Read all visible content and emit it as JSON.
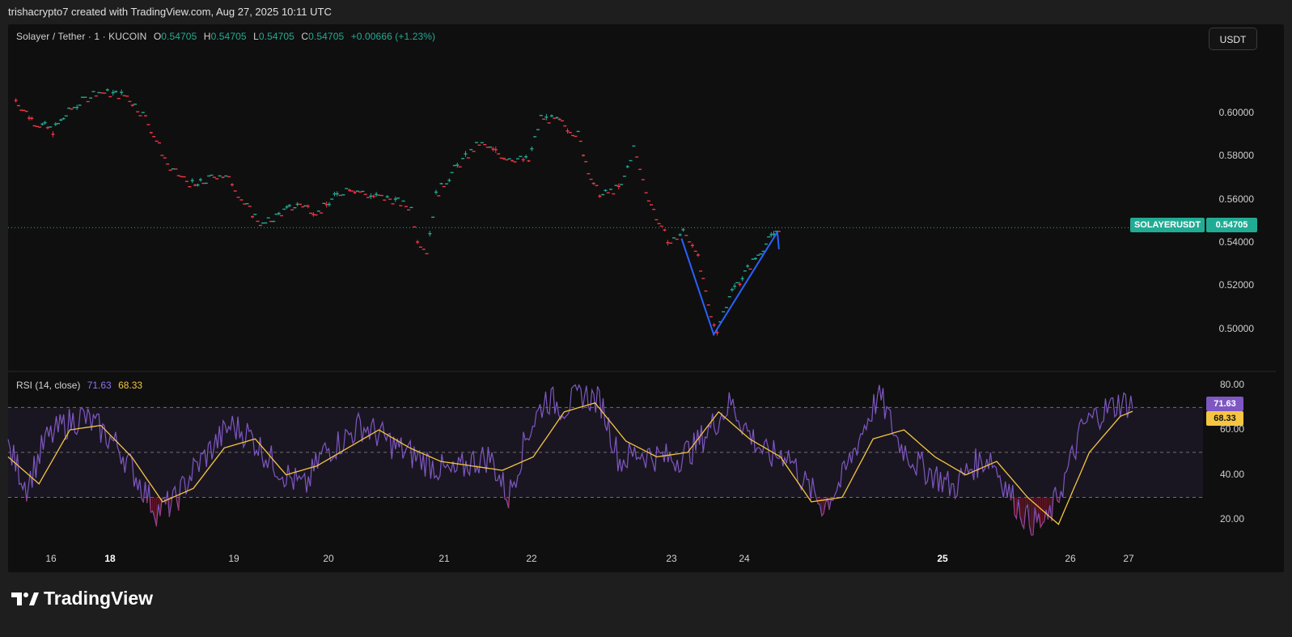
{
  "header": {
    "text": "trishacrypto7 created with TradingView.com, Aug 27, 2025 10:11 UTC"
  },
  "symbol": {
    "name": "Solayer / Tether · 1 · KUCOIN",
    "open_label": "O",
    "open": "0.54705",
    "high_label": "H",
    "high": "0.54705",
    "low_label": "L",
    "low": "0.54705",
    "close_label": "C",
    "close": "0.54705",
    "change": "+0.00666 (+1.23%)"
  },
  "currency_button": "USDT",
  "price_tag": {
    "symbol": "SOLAYERUSDT",
    "value": "0.54705"
  },
  "rsi": {
    "title": "RSI (14, close)",
    "value": "71.63",
    "ma_value": "68.33"
  },
  "branding": {
    "name": "TradingView"
  },
  "colors": {
    "up": "#22ab94",
    "down": "#f23645",
    "rsi": "#7e57c2",
    "rsi_ma": "#f5c542",
    "annotation": "#2962ff",
    "price_line": "#22ab94"
  },
  "chart_data": [
    {
      "type": "candlestick",
      "title": "Solayer / Tether · 1 · KUCOIN",
      "ylim": [
        0.4875,
        0.6225
      ],
      "y_ticks": [
        "0.60000",
        "0.58000",
        "0.56000",
        "0.54000",
        "0.52000",
        "0.50000"
      ],
      "x_ticks": [
        "16",
        "18",
        "19",
        "20",
        "21",
        "22",
        "23",
        "24",
        "25",
        "26",
        "27"
      ],
      "bold_x_ticks": [
        "18",
        "25"
      ],
      "last_price": 0.54705,
      "price_path": [
        [
          15.5,
          0.606
        ],
        [
          15.8,
          0.596
        ],
        [
          16.1,
          0.592
        ],
        [
          16.4,
          0.602
        ],
        [
          16.8,
          0.61
        ],
        [
          17.3,
          0.608
        ],
        [
          17.6,
          0.598
        ],
        [
          18.0,
          0.574
        ],
        [
          18.4,
          0.566
        ],
        [
          18.8,
          0.572
        ],
        [
          19.0,
          0.568
        ],
        [
          19.2,
          0.558
        ],
        [
          19.5,
          0.548
        ],
        [
          19.8,
          0.554
        ],
        [
          20.1,
          0.558
        ],
        [
          20.4,
          0.554
        ],
        [
          20.7,
          0.562
        ],
        [
          20.9,
          0.566
        ],
        [
          21.2,
          0.562
        ],
        [
          21.6,
          0.56
        ],
        [
          21.9,
          0.556
        ],
        [
          22.0,
          0.542
        ],
        [
          22.15,
          0.536
        ],
        [
          22.3,
          0.562
        ],
        [
          22.6,
          0.574
        ],
        [
          23.0,
          0.586
        ],
        [
          23.4,
          0.58
        ],
        [
          23.8,
          0.578
        ],
        [
          24.0,
          0.598
        ],
        [
          24.3,
          0.596
        ],
        [
          24.6,
          0.59
        ],
        [
          24.85,
          0.566
        ],
        [
          25.0,
          0.562
        ],
        [
          25.3,
          0.566
        ],
        [
          25.5,
          0.584
        ],
        [
          25.7,
          0.564
        ],
        [
          25.95,
          0.546
        ],
        [
          26.1,
          0.54
        ],
        [
          26.3,
          0.545
        ],
        [
          26.5,
          0.538
        ],
        [
          26.75,
          0.505
        ],
        [
          26.85,
          0.5
        ],
        [
          27.05,
          0.516
        ],
        [
          27.3,
          0.526
        ],
        [
          27.6,
          0.538
        ],
        [
          27.85,
          0.547
        ]
      ],
      "annotation_v": [
        [
          26.3,
          0.542
        ],
        [
          26.82,
          0.4975
        ],
        [
          27.85,
          0.545
        ],
        [
          27.85,
          0.54
        ]
      ]
    },
    {
      "type": "line",
      "title": "RSI (14, close)",
      "ylim": [
        10,
        82
      ],
      "y_ticks": [
        "80.00",
        "60.00",
        "40.00",
        "20.00"
      ],
      "bands": [
        70,
        50,
        30
      ],
      "series": [
        {
          "name": "RSI",
          "last": 71.63
        },
        {
          "name": "RSI MA",
          "last": 68.33
        }
      ],
      "rsi_path": [
        [
          15.4,
          52
        ],
        [
          15.7,
          35
        ],
        [
          16.0,
          55
        ],
        [
          16.3,
          62
        ],
        [
          16.6,
          66
        ],
        [
          16.9,
          60
        ],
        [
          17.2,
          52
        ],
        [
          17.5,
          38
        ],
        [
          17.8,
          24
        ],
        [
          18.1,
          28
        ],
        [
          18.4,
          42
        ],
        [
          18.7,
          52
        ],
        [
          19.0,
          62
        ],
        [
          19.3,
          58
        ],
        [
          19.6,
          48
        ],
        [
          19.9,
          40
        ],
        [
          20.2,
          34
        ],
        [
          20.5,
          50
        ],
        [
          20.8,
          55
        ],
        [
          21.1,
          62
        ],
        [
          21.4,
          58
        ],
        [
          21.7,
          52
        ],
        [
          22.0,
          48
        ],
        [
          22.3,
          44
        ],
        [
          22.6,
          40
        ],
        [
          22.9,
          46
        ],
        [
          23.2,
          48
        ],
        [
          23.5,
          30
        ],
        [
          23.8,
          58
        ],
        [
          24.1,
          74
        ],
        [
          24.4,
          70
        ],
        [
          24.7,
          76
        ],
        [
          25.0,
          72
        ],
        [
          25.3,
          46
        ],
        [
          25.6,
          50
        ],
        [
          25.9,
          48
        ],
        [
          26.2,
          47
        ],
        [
          26.5,
          52
        ],
        [
          26.8,
          62
        ],
        [
          27.1,
          72
        ],
        [
          27.4,
          58
        ],
        [
          27.7,
          48
        ],
        [
          28.0,
          50
        ],
        [
          28.3,
          36
        ],
        [
          28.6,
          26
        ],
        [
          28.9,
          38
        ],
        [
          29.2,
          58
        ],
        [
          29.5,
          76
        ],
        [
          29.8,
          55
        ],
        [
          30.1,
          45
        ],
        [
          30.4,
          40
        ],
        [
          30.7,
          34
        ],
        [
          31.0,
          44
        ],
        [
          31.3,
          48
        ],
        [
          31.6,
          32
        ],
        [
          31.9,
          20
        ],
        [
          32.2,
          18
        ],
        [
          32.5,
          38
        ],
        [
          32.8,
          62
        ],
        [
          33.1,
          68
        ],
        [
          33.4,
          72
        ],
        [
          33.6,
          71.6
        ]
      ],
      "ma_path": [
        [
          15.4,
          48
        ],
        [
          15.9,
          36
        ],
        [
          16.4,
          60
        ],
        [
          16.9,
          62
        ],
        [
          17.4,
          48
        ],
        [
          17.9,
          28
        ],
        [
          18.4,
          34
        ],
        [
          18.9,
          52
        ],
        [
          19.4,
          56
        ],
        [
          19.9,
          40
        ],
        [
          20.4,
          44
        ],
        [
          20.9,
          52
        ],
        [
          21.4,
          60
        ],
        [
          21.9,
          52
        ],
        [
          22.4,
          46
        ],
        [
          22.9,
          44
        ],
        [
          23.4,
          42
        ],
        [
          23.9,
          48
        ],
        [
          24.4,
          68
        ],
        [
          24.9,
          72
        ],
        [
          25.4,
          55
        ],
        [
          25.9,
          48
        ],
        [
          26.4,
          50
        ],
        [
          26.9,
          68
        ],
        [
          27.4,
          56
        ],
        [
          27.9,
          48
        ],
        [
          28.4,
          28
        ],
        [
          28.9,
          30
        ],
        [
          29.4,
          56
        ],
        [
          29.9,
          60
        ],
        [
          30.4,
          48
        ],
        [
          30.9,
          40
        ],
        [
          31.4,
          46
        ],
        [
          31.9,
          30
        ],
        [
          32.4,
          18
        ],
        [
          32.9,
          50
        ],
        [
          33.4,
          66
        ],
        [
          33.6,
          68.3
        ]
      ]
    }
  ]
}
